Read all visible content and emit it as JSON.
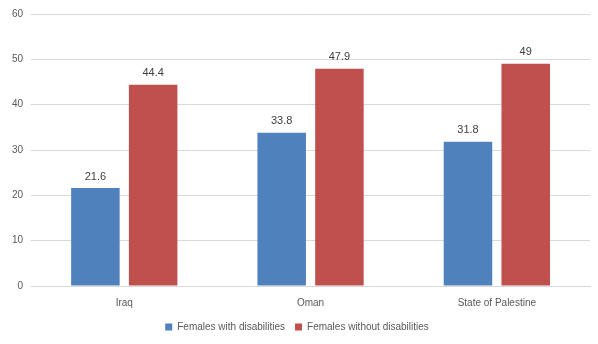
{
  "chart_data": {
    "type": "bar",
    "categories": [
      "Iraq",
      "Oman",
      "State of Palestine"
    ],
    "series": [
      {
        "name": "Females with disabilities",
        "color": "#4f81bd",
        "values": [
          21.6,
          33.8,
          31.8
        ]
      },
      {
        "name": "Females without disabilities",
        "color": "#c0504d",
        "values": [
          44.4,
          47.9,
          49
        ]
      }
    ],
    "ylim": [
      0,
      60
    ],
    "yticks": [
      0,
      10,
      20,
      30,
      40,
      50,
      60
    ],
    "grid": true,
    "legend": "bottom",
    "data_labels": true
  }
}
